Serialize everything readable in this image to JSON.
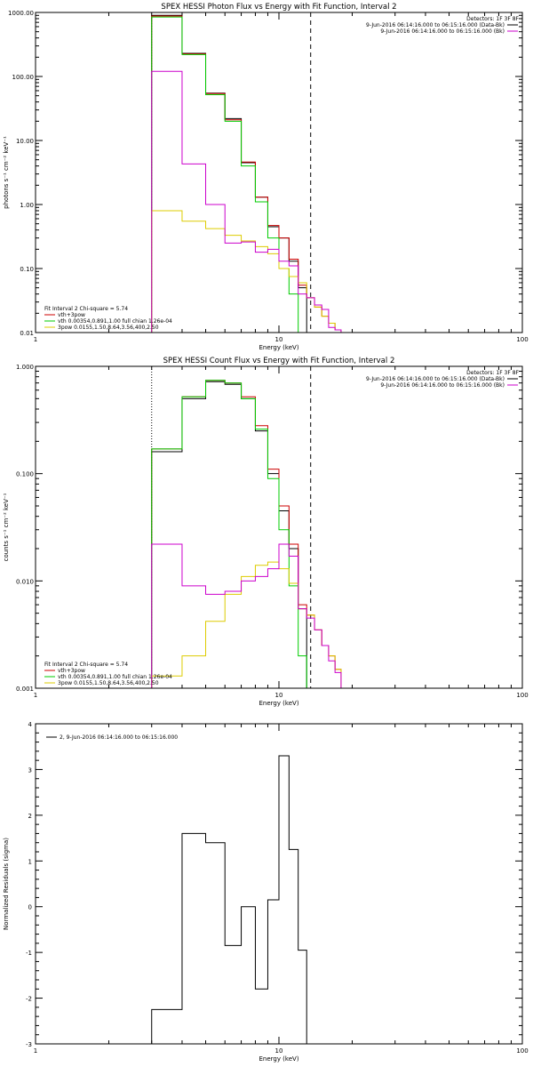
{
  "chart_data": [
    {
      "type": "line",
      "title": "SPEX HESSI Photon Flux vs Energy with Fit Function, Interval 2",
      "xlabel": "Energy (keV)",
      "ylabel": "photons s⁻¹ cm⁻² keV⁻¹",
      "xscale": "log",
      "yscale": "log",
      "xlim": [
        1,
        100
      ],
      "ylim": [
        0.01,
        1000
      ],
      "x_ticks": [
        "1",
        "10",
        "100"
      ],
      "y_ticks": [
        "0.01",
        "0.10",
        "1.00",
        "10.00",
        "100.00",
        "1000.00"
      ],
      "legend_topright": [
        {
          "text": "Detectors: 1F 3F 8F",
          "color": ""
        },
        {
          "text": "9-Jun-2016 06:14:16.000 to 06:15:16.000 (Data-Bk)",
          "color": "#000000"
        },
        {
          "text": "9-Jun-2016 06:14:16.000 to 06:15:16.000 (Bk)",
          "color": "#cc00cc"
        }
      ],
      "legend_bottomleft": [
        {
          "text": "Fit Interval 2  Chi-square = 5.74",
          "color": ""
        },
        {
          "text": "vth+3pow",
          "color": "#cc0000"
        },
        {
          "text": "vth 0.00354,0.891,1.00  full chian 1.26e-04",
          "color": "#00cc00"
        },
        {
          "text": "3pow 0.0155,1.50,8.64,3.56,400,2.50",
          "color": "#ddcc00"
        }
      ],
      "edges": [
        3,
        4,
        5,
        6,
        7,
        8,
        9,
        10,
        11,
        12,
        13,
        14,
        15,
        16,
        17,
        18,
        20
      ],
      "vlines": [
        {
          "x": 3,
          "style": "dotted"
        },
        {
          "x": 13.5,
          "style": "dashed"
        }
      ],
      "series": [
        {
          "name": "Data-Bk",
          "color": "#000000",
          "values": [
            900,
            230,
            55,
            22,
            4.5,
            1.3,
            0.45,
            0.3,
            0.13,
            0.05,
            null,
            null,
            null,
            null,
            null,
            null
          ]
        },
        {
          "name": "vth+3pow",
          "color": "#cc0000",
          "values": [
            880,
            225,
            54,
            21,
            4.6,
            1.3,
            0.47,
            0.3,
            0.14,
            0.055,
            0.035,
            0.025,
            0.018,
            0.014,
            0.011,
            null
          ]
        },
        {
          "name": "vth",
          "color": "#00cc00",
          "values": [
            850,
            220,
            52,
            20,
            4.0,
            1.1,
            0.3,
            0.1,
            0.04,
            0.01,
            null,
            null,
            null,
            null,
            null,
            null
          ]
        },
        {
          "name": "3pow",
          "color": "#ddcc00",
          "values": [
            0.8,
            0.55,
            0.42,
            0.33,
            0.27,
            0.22,
            0.17,
            0.1,
            0.075,
            0.06,
            0.035,
            0.025,
            0.018,
            0.014,
            0.011,
            null
          ]
        },
        {
          "name": "Bk",
          "color": "#cc00cc",
          "values": [
            120,
            4.3,
            1.0,
            0.25,
            0.26,
            0.18,
            0.2,
            0.13,
            0.11,
            0.04,
            0.035,
            0.027,
            0.023,
            0.012,
            0.011,
            null
          ]
        }
      ]
    },
    {
      "type": "line",
      "title": "SPEX HESSI Count Flux vs Energy with Fit Function, Interval 2",
      "xlabel": "Energy (keV)",
      "ylabel": "counts s⁻¹ cm⁻² keV⁻¹",
      "xscale": "log",
      "yscale": "log",
      "xlim": [
        1,
        100
      ],
      "ylim": [
        0.001,
        1
      ],
      "x_ticks": [
        "1",
        "10",
        "100"
      ],
      "y_ticks": [
        "0.001",
        "0.010",
        "0.100",
        "1.000"
      ],
      "legend_topright": [
        {
          "text": "Detectors: 1F 3F 8F",
          "color": ""
        },
        {
          "text": "9-Jun-2016 06:14:16.000 to 06:15:16.000 (Data-Bk)",
          "color": "#000000"
        },
        {
          "text": "9-Jun-2016 06:14:16.000 to 06:15:16.000 (Bk)",
          "color": "#cc00cc"
        }
      ],
      "legend_bottomleft": [
        {
          "text": "Fit Interval 2  Chi-square = 5.74",
          "color": ""
        },
        {
          "text": "vth+3pow",
          "color": "#cc0000"
        },
        {
          "text": "vth 0.00354,0.891,1.00  full chian 1.26e-04",
          "color": "#00cc00"
        },
        {
          "text": "3pow 0.0155,1.50,8.64,3.56,400,2.50",
          "color": "#ddcc00"
        }
      ],
      "edges": [
        3,
        4,
        5,
        6,
        7,
        8,
        9,
        10,
        11,
        12,
        13,
        14,
        15,
        16,
        17,
        18,
        20
      ],
      "vlines": [
        {
          "x": 3,
          "style": "dotted"
        },
        {
          "x": 13.5,
          "style": "dashed"
        }
      ],
      "series": [
        {
          "name": "Data-Bk",
          "color": "#000000",
          "values": [
            0.16,
            0.5,
            0.72,
            0.68,
            0.5,
            0.25,
            0.1,
            0.045,
            0.02,
            0.0055,
            null,
            null,
            null,
            null,
            null,
            null
          ]
        },
        {
          "name": "vth+3pow",
          "color": "#cc0000",
          "values": [
            0.17,
            0.52,
            0.74,
            0.7,
            0.52,
            0.28,
            0.11,
            0.05,
            0.022,
            0.006,
            0.0048,
            0.0035,
            0.0025,
            0.002,
            0.0015,
            null
          ]
        },
        {
          "name": "vth",
          "color": "#00cc00",
          "values": [
            0.17,
            0.52,
            0.74,
            0.7,
            0.5,
            0.26,
            0.09,
            0.03,
            0.009,
            0.002,
            null,
            null,
            null,
            null,
            null,
            null
          ]
        },
        {
          "name": "3pow",
          "color": "#ddcc00",
          "values": [
            0.0013,
            0.002,
            0.0042,
            0.0075,
            0.011,
            0.014,
            0.015,
            0.013,
            0.0095,
            0.0055,
            0.0048,
            0.0035,
            0.0025,
            0.002,
            0.0015,
            null
          ]
        },
        {
          "name": "Bk",
          "color": "#cc00cc",
          "values": [
            0.022,
            0.009,
            0.0075,
            0.008,
            0.01,
            0.011,
            0.013,
            0.022,
            0.017,
            0.0055,
            0.0045,
            0.0035,
            0.0025,
            0.0018,
            0.0014,
            null
          ]
        }
      ]
    },
    {
      "type": "line",
      "title": "",
      "xlabel": "Energy (keV)",
      "ylabel": "Normalized Residuals (sigma)",
      "xscale": "log",
      "yscale": "linear",
      "xlim": [
        1,
        100
      ],
      "ylim": [
        -3,
        4
      ],
      "x_ticks": [
        "1",
        "10",
        "100"
      ],
      "y_ticks": [
        "-3",
        "-2",
        "-1",
        "0",
        "1",
        "2",
        "3",
        "4"
      ],
      "legend_topleft": [
        {
          "text": "2,  9-Jun-2016 06:14:16.000 to 06:15:16.000",
          "color": "#000000"
        }
      ],
      "edges": [
        3,
        4,
        5,
        6,
        7,
        8,
        9,
        10,
        11,
        12,
        13
      ],
      "series": [
        {
          "name": "2,  9-Jun-2016 06:14:16.000 to 06:15:16.000",
          "color": "#000000",
          "values": [
            -2.25,
            1.6,
            1.4,
            -0.85,
            0.0,
            -1.8,
            0.15,
            3.3,
            1.25,
            -0.95
          ]
        }
      ]
    }
  ]
}
